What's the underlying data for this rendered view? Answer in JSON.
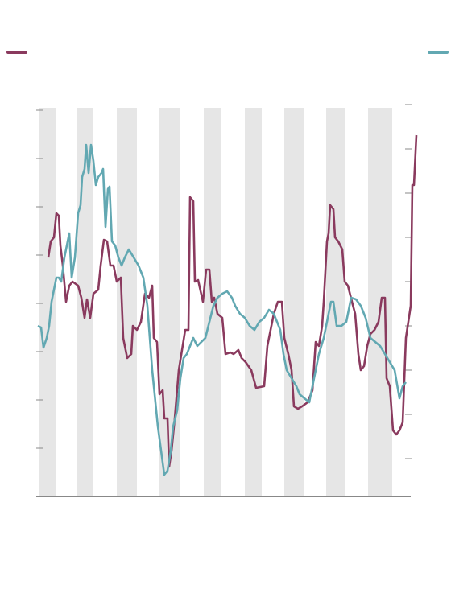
{
  "chart_data": {
    "type": "line",
    "xlim": [
      0,
      472
    ],
    "ylim": [
      0,
      486
    ],
    "yticks": [
      60,
      120,
      180,
      240,
      300,
      360,
      420,
      480
    ],
    "y2lim": [
      0,
      486
    ],
    "y2ticks": [
      47,
      102,
      157,
      212,
      267,
      322,
      377,
      432,
      487
    ],
    "shaded_periods": [
      [
        3,
        24
      ],
      [
        50,
        71
      ],
      [
        100,
        125
      ],
      [
        153,
        179
      ],
      [
        208,
        229
      ],
      [
        259,
        280
      ],
      [
        308,
        333
      ],
      [
        360,
        383
      ],
      [
        412,
        442
      ]
    ],
    "shade_color": "#e6e6e6",
    "series": [
      {
        "color": "#8a3a5e",
        "x": [
          15,
          18,
          22,
          25,
          28,
          30,
          33,
          37,
          41,
          45,
          52,
          56,
          60,
          63,
          67,
          71,
          77,
          80,
          84,
          88,
          92,
          96,
          100,
          105,
          108,
          113,
          118,
          120,
          125,
          130,
          135,
          140,
          144,
          146,
          150,
          153,
          157,
          159,
          163,
          165,
          168,
          172,
          177,
          181,
          185,
          189,
          191,
          195,
          197,
          201,
          207,
          211,
          215,
          218,
          221,
          225,
          231,
          235,
          241,
          245,
          251,
          255,
          260,
          267,
          273,
          283,
          287,
          291,
          295,
          300,
          305,
          308,
          313,
          317,
          320,
          325,
          330,
          337,
          343,
          347,
          351,
          355,
          357,
          361,
          363,
          365,
          369,
          371,
          375,
          380,
          383,
          387,
          392,
          396,
          400,
          403,
          407,
          411,
          415,
          420,
          425,
          429,
          433,
          435,
          439,
          443,
          447,
          451,
          455,
          459,
          462,
          465,
          467,
          469,
          472
        ],
        "values": [
          297,
          317,
          322,
          352,
          349,
          312,
          287,
          242,
          262,
          267,
          262,
          247,
          222,
          245,
          222,
          252,
          257,
          287,
          319,
          317,
          287,
          287,
          267,
          272,
          197,
          172,
          177,
          212,
          207,
          217,
          252,
          247,
          262,
          197,
          192,
          127,
          132,
          97,
          97,
          37,
          57,
          97,
          157,
          182,
          207,
          207,
          372,
          367,
          267,
          269,
          242,
          282,
          282,
          242,
          247,
          227,
          222,
          177,
          179,
          177,
          182,
          172,
          167,
          157,
          135,
          137,
          187,
          207,
          227,
          242,
          242,
          197,
          177,
          157,
          112,
          109,
          112,
          117,
          132,
          192,
          187,
          212,
          242,
          317,
          327,
          362,
          357,
          322,
          317,
          307,
          267,
          262,
          242,
          227,
          177,
          157,
          162,
          187,
          202,
          207,
          217,
          247,
          247,
          147,
          137,
          82,
          77,
          82,
          92,
          197,
          217,
          237,
          387,
          387,
          449
        ]
      },
      {
        "color": "#62a8b2",
        "axis": "y2",
        "x": [
          2,
          6,
          9,
          13,
          16,
          19,
          22,
          25,
          28,
          31,
          35,
          39,
          41,
          44,
          48,
          52,
          55,
          57,
          60,
          62,
          65,
          68,
          71,
          74,
          77,
          81,
          83,
          86,
          89,
          91,
          94,
          98,
          102,
          106,
          110,
          115,
          121,
          127,
          133,
          138,
          141,
          144,
          147,
          151,
          155,
          159,
          163,
          167,
          170,
          175,
          179,
          183,
          187,
          191,
          195,
          200,
          205,
          210,
          215,
          220,
          225,
          231,
          237,
          243,
          247,
          253,
          259,
          265,
          271,
          277,
          283,
          289,
          295,
          299,
          303,
          307,
          311,
          317,
          323,
          327,
          333,
          339,
          345,
          351,
          357,
          361,
          366,
          369,
          373,
          379,
          385,
          391,
          397,
          403,
          409,
          415,
          421,
          427,
          433,
          439,
          445,
          451,
          455,
          459
        ],
        "values": [
          212,
          210,
          185,
          197,
          212,
          242,
          257,
          272,
          272,
          267,
          297,
          317,
          327,
          272,
          297,
          352,
          362,
          397,
          407,
          437,
          402,
          437,
          417,
          387,
          397,
          402,
          407,
          335,
          382,
          385,
          317,
          312,
          297,
          287,
          297,
          307,
          297,
          287,
          272,
          237,
          197,
          157,
          127,
          87,
          57,
          27,
          32,
          57,
          87,
          107,
          147,
          172,
          177,
          187,
          197,
          187,
          192,
          197,
          217,
          237,
          247,
          252,
          255,
          247,
          237,
          227,
          222,
          212,
          207,
          217,
          222,
          232,
          227,
          217,
          207,
          177,
          157,
          147,
          137,
          127,
          122,
          117,
          147,
          177,
          197,
          217,
          242,
          242,
          212,
          212,
          217,
          247,
          245,
          237,
          222,
          197,
          192,
          187,
          177,
          167,
          157,
          122,
          137,
          142
        ]
      }
    ]
  }
}
